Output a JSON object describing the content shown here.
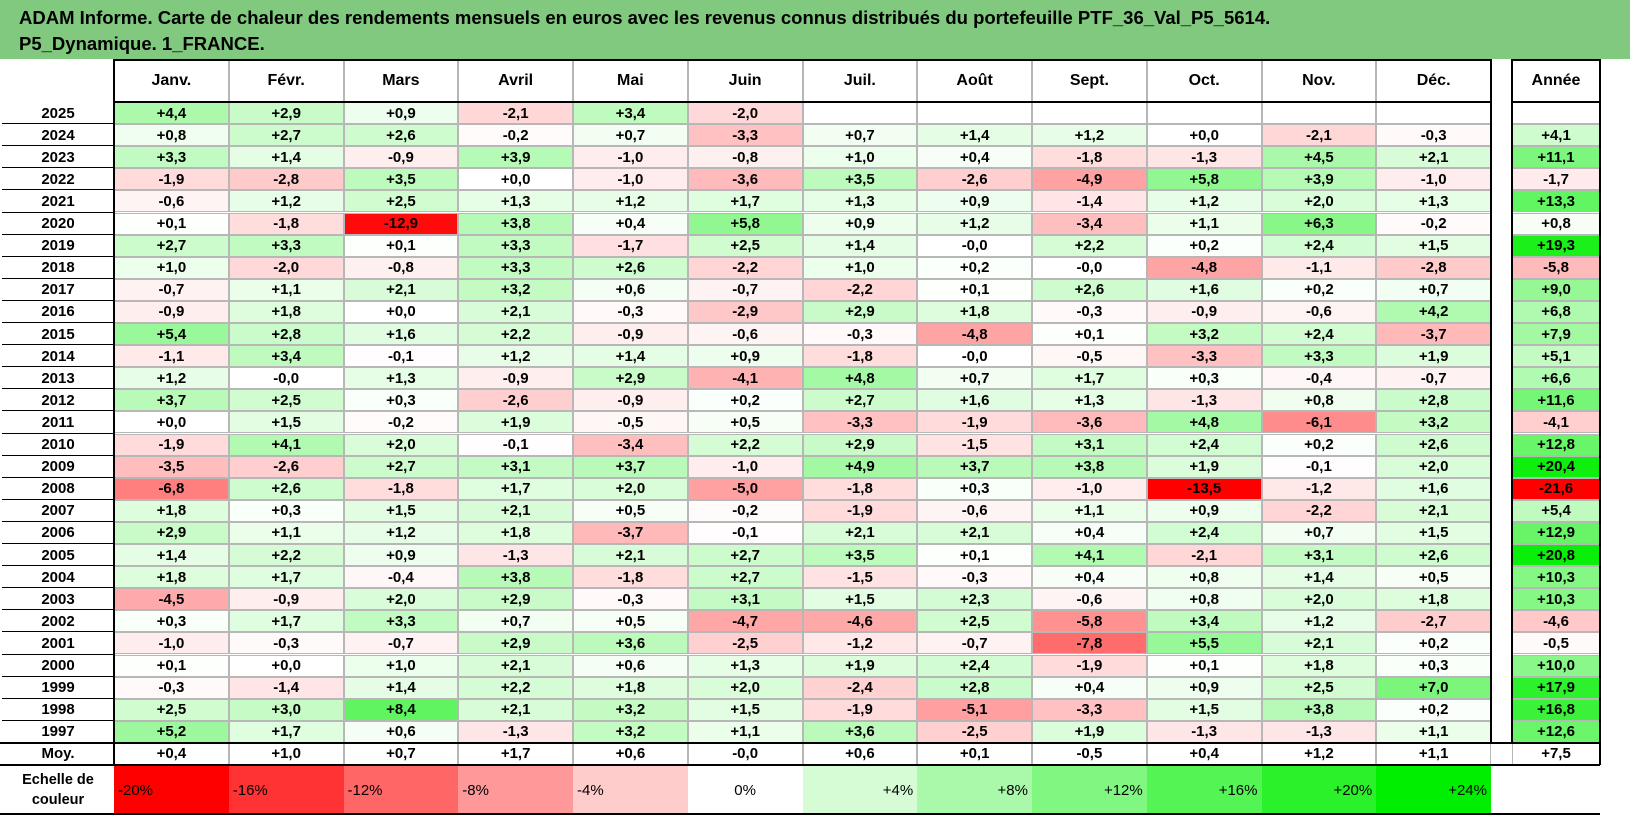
{
  "title": {
    "line1": "ADAM Informe. Carte de chaleur des rendements mensuels en euros avec les revenus connus distribués du portefeuille PTF_36_Val_P5_5614.",
    "line2": "P5_Dynamique. 1_FRANCE."
  },
  "colors": {
    "title_bg": "#80c97e",
    "negative_max": "#ff0000",
    "positive_max": "#00ee00",
    "neutral": "#ffffff"
  },
  "chart_data": {
    "type": "heatmap",
    "columns": [
      "Janv.",
      "Févr.",
      "Mars",
      "Avril",
      "Mai",
      "Juin",
      "Juil.",
      "Août",
      "Sept.",
      "Oct.",
      "Nov.",
      "Déc."
    ],
    "year_header": "Année",
    "rows": [
      {
        "year": "2025",
        "months": [
          "+4,4",
          "+2,9",
          "+0,9",
          "-2,1",
          "+3,4",
          "-2,0",
          "",
          "",
          "",
          "",
          "",
          ""
        ],
        "annual": ""
      },
      {
        "year": "2024",
        "months": [
          "+0,8",
          "+2,7",
          "+2,6",
          "-0,2",
          "+0,7",
          "-3,3",
          "+0,7",
          "+1,4",
          "+1,2",
          "+0,0",
          "-2,1",
          "-0,3"
        ],
        "annual": "+4,1"
      },
      {
        "year": "2023",
        "months": [
          "+3,3",
          "+1,4",
          "-0,9",
          "+3,9",
          "-1,0",
          "-0,8",
          "+1,0",
          "+0,4",
          "-1,8",
          "-1,3",
          "+4,5",
          "+2,1"
        ],
        "annual": "+11,1"
      },
      {
        "year": "2022",
        "months": [
          "-1,9",
          "-2,8",
          "+3,5",
          "+0,0",
          "-1,0",
          "-3,6",
          "+3,5",
          "-2,6",
          "-4,9",
          "+5,8",
          "+3,9",
          "-1,0"
        ],
        "annual": "-1,7"
      },
      {
        "year": "2021",
        "months": [
          "-0,6",
          "+1,2",
          "+2,5",
          "+1,3",
          "+1,2",
          "+1,7",
          "+1,3",
          "+0,9",
          "-1,4",
          "+1,2",
          "+2,0",
          "+1,3"
        ],
        "annual": "+13,3"
      },
      {
        "year": "2020",
        "months": [
          "+0,1",
          "-1,8",
          "-12,9",
          "+3,8",
          "+0,4",
          "+5,8",
          "+0,9",
          "+1,2",
          "-3,4",
          "+1,1",
          "+6,3",
          "-0,2"
        ],
        "annual": "+0,8"
      },
      {
        "year": "2019",
        "months": [
          "+2,7",
          "+3,3",
          "+0,1",
          "+3,3",
          "-1,7",
          "+2,5",
          "+1,4",
          "-0,0",
          "+2,2",
          "+0,2",
          "+2,4",
          "+1,5"
        ],
        "annual": "+19,3"
      },
      {
        "year": "2018",
        "months": [
          "+1,0",
          "-2,0",
          "-0,8",
          "+3,3",
          "+2,6",
          "-2,2",
          "+1,0",
          "+0,2",
          "-0,0",
          "-4,8",
          "-1,1",
          "-2,8"
        ],
        "annual": "-5,8"
      },
      {
        "year": "2017",
        "months": [
          "-0,7",
          "+1,1",
          "+2,1",
          "+3,2",
          "+0,6",
          "-0,7",
          "-2,2",
          "+0,1",
          "+2,6",
          "+1,6",
          "+0,2",
          "+0,7"
        ],
        "annual": "+9,0"
      },
      {
        "year": "2016",
        "months": [
          "-0,9",
          "+1,8",
          "+0,0",
          "+2,1",
          "-0,3",
          "-2,9",
          "+2,9",
          "+1,8",
          "-0,3",
          "-0,9",
          "-0,6",
          "+4,2"
        ],
        "annual": "+6,8"
      },
      {
        "year": "2015",
        "months": [
          "+5,4",
          "+2,8",
          "+1,6",
          "+2,2",
          "-0,9",
          "-0,6",
          "-0,3",
          "-4,8",
          "+0,1",
          "+3,2",
          "+2,4",
          "-3,7"
        ],
        "annual": "+7,9"
      },
      {
        "year": "2014",
        "months": [
          "-1,1",
          "+3,4",
          "-0,1",
          "+1,2",
          "+1,4",
          "+0,9",
          "-1,8",
          "-0,0",
          "-0,5",
          "-3,3",
          "+3,3",
          "+1,9"
        ],
        "annual": "+5,1"
      },
      {
        "year": "2013",
        "months": [
          "+1,2",
          "-0,0",
          "+1,3",
          "-0,9",
          "+2,9",
          "-4,1",
          "+4,8",
          "+0,7",
          "+1,7",
          "+0,3",
          "-0,4",
          "-0,7"
        ],
        "annual": "+6,6"
      },
      {
        "year": "2012",
        "months": [
          "+3,7",
          "+2,5",
          "+0,3",
          "-2,6",
          "-0,9",
          "+0,2",
          "+2,7",
          "+1,6",
          "+1,3",
          "-1,3",
          "+0,8",
          "+2,8"
        ],
        "annual": "+11,6"
      },
      {
        "year": "2011",
        "months": [
          "+0,0",
          "+1,5",
          "-0,2",
          "+1,9",
          "-0,5",
          "+0,5",
          "-3,3",
          "-1,9",
          "-3,6",
          "+4,8",
          "-6,1",
          "+3,2"
        ],
        "annual": "-4,1"
      },
      {
        "year": "2010",
        "months": [
          "-1,9",
          "+4,1",
          "+2,0",
          "-0,1",
          "-3,4",
          "+2,2",
          "+2,9",
          "-1,5",
          "+3,1",
          "+2,4",
          "+0,2",
          "+2,6"
        ],
        "annual": "+12,8"
      },
      {
        "year": "2009",
        "months": [
          "-3,5",
          "-2,6",
          "+2,7",
          "+3,1",
          "+3,7",
          "-1,0",
          "+4,9",
          "+3,7",
          "+3,8",
          "+1,9",
          "-0,1",
          "+2,0"
        ],
        "annual": "+20,4"
      },
      {
        "year": "2008",
        "months": [
          "-6,8",
          "+2,6",
          "-1,8",
          "+1,7",
          "+2,0",
          "-5,0",
          "-1,8",
          "+0,3",
          "-1,0",
          "-13,5",
          "-1,2",
          "+1,6"
        ],
        "annual": "-21,6"
      },
      {
        "year": "2007",
        "months": [
          "+1,8",
          "+0,3",
          "+1,5",
          "+2,1",
          "+0,5",
          "-0,2",
          "-1,9",
          "-0,6",
          "+1,1",
          "+0,9",
          "-2,2",
          "+2,1"
        ],
        "annual": "+5,4"
      },
      {
        "year": "2006",
        "months": [
          "+2,9",
          "+1,1",
          "+1,2",
          "+1,8",
          "-3,7",
          "-0,1",
          "+2,1",
          "+2,1",
          "+0,4",
          "+2,4",
          "+0,7",
          "+1,5"
        ],
        "annual": "+12,9"
      },
      {
        "year": "2005",
        "months": [
          "+1,4",
          "+2,2",
          "+0,9",
          "-1,3",
          "+2,1",
          "+2,7",
          "+3,5",
          "+0,1",
          "+4,1",
          "-2,1",
          "+3,1",
          "+2,6"
        ],
        "annual": "+20,8"
      },
      {
        "year": "2004",
        "months": [
          "+1,8",
          "+1,7",
          "-0,4",
          "+3,8",
          "-1,8",
          "+2,7",
          "-1,5",
          "-0,3",
          "+0,4",
          "+0,8",
          "+1,4",
          "+0,5"
        ],
        "annual": "+10,3"
      },
      {
        "year": "2003",
        "months": [
          "-4,5",
          "-0,9",
          "+2,0",
          "+2,9",
          "-0,3",
          "+3,1",
          "+1,5",
          "+2,3",
          "-0,6",
          "+0,8",
          "+2,0",
          "+1,8"
        ],
        "annual": "+10,3"
      },
      {
        "year": "2002",
        "months": [
          "+0,3",
          "+1,7",
          "+3,3",
          "+0,7",
          "+0,5",
          "-4,7",
          "-4,6",
          "+2,5",
          "-5,8",
          "+3,4",
          "+1,2",
          "-2,7"
        ],
        "annual": "-4,6"
      },
      {
        "year": "2001",
        "months": [
          "-1,0",
          "-0,3",
          "-0,7",
          "+2,9",
          "+3,6",
          "-2,5",
          "-1,2",
          "-0,7",
          "-7,8",
          "+5,5",
          "+2,1",
          "+0,2"
        ],
        "annual": "-0,5"
      },
      {
        "year": "2000",
        "months": [
          "+0,1",
          "+0,0",
          "+1,0",
          "+2,1",
          "+0,6",
          "+1,3",
          "+1,9",
          "+2,4",
          "-1,9",
          "+0,1",
          "+1,8",
          "+0,3"
        ],
        "annual": "+10,0"
      },
      {
        "year": "1999",
        "months": [
          "-0,3",
          "-1,4",
          "+1,4",
          "+2,2",
          "+1,8",
          "+2,0",
          "-2,4",
          "+2,8",
          "+0,4",
          "+0,9",
          "+2,5",
          "+7,0"
        ],
        "annual": "+17,9"
      },
      {
        "year": "1998",
        "months": [
          "+2,5",
          "+3,0",
          "+8,4",
          "+2,1",
          "+3,2",
          "+1,5",
          "-1,9",
          "-5,1",
          "-3,3",
          "+1,5",
          "+3,8",
          "+0,2"
        ],
        "annual": "+16,8"
      },
      {
        "year": "1997",
        "months": [
          "+5,2",
          "+1,7",
          "+0,6",
          "-1,3",
          "+3,2",
          "+1,1",
          "+3,6",
          "-2,5",
          "+1,9",
          "-1,3",
          "-1,3",
          "+1,1"
        ],
        "annual": "+12,6"
      }
    ],
    "average_row": {
      "label": "Moy.",
      "months": [
        "+0,4",
        "+1,0",
        "+0,7",
        "+1,7",
        "+0,6",
        "-0,0",
        "+0,6",
        "+0,1",
        "-0,5",
        "+0,4",
        "+1,2",
        "+1,1"
      ],
      "annual": "+7,5"
    },
    "legend": {
      "label": "Echelle de couleur",
      "stops": [
        "-20%",
        "-16%",
        "-12%",
        "-8%",
        "-4%",
        "0%",
        "+4%",
        "+8%",
        "+12%",
        "+16%",
        "+20%",
        "+24%"
      ],
      "values": [
        -20,
        -16,
        -12,
        -8,
        -4,
        0,
        4,
        8,
        12,
        16,
        20,
        24
      ]
    }
  }
}
